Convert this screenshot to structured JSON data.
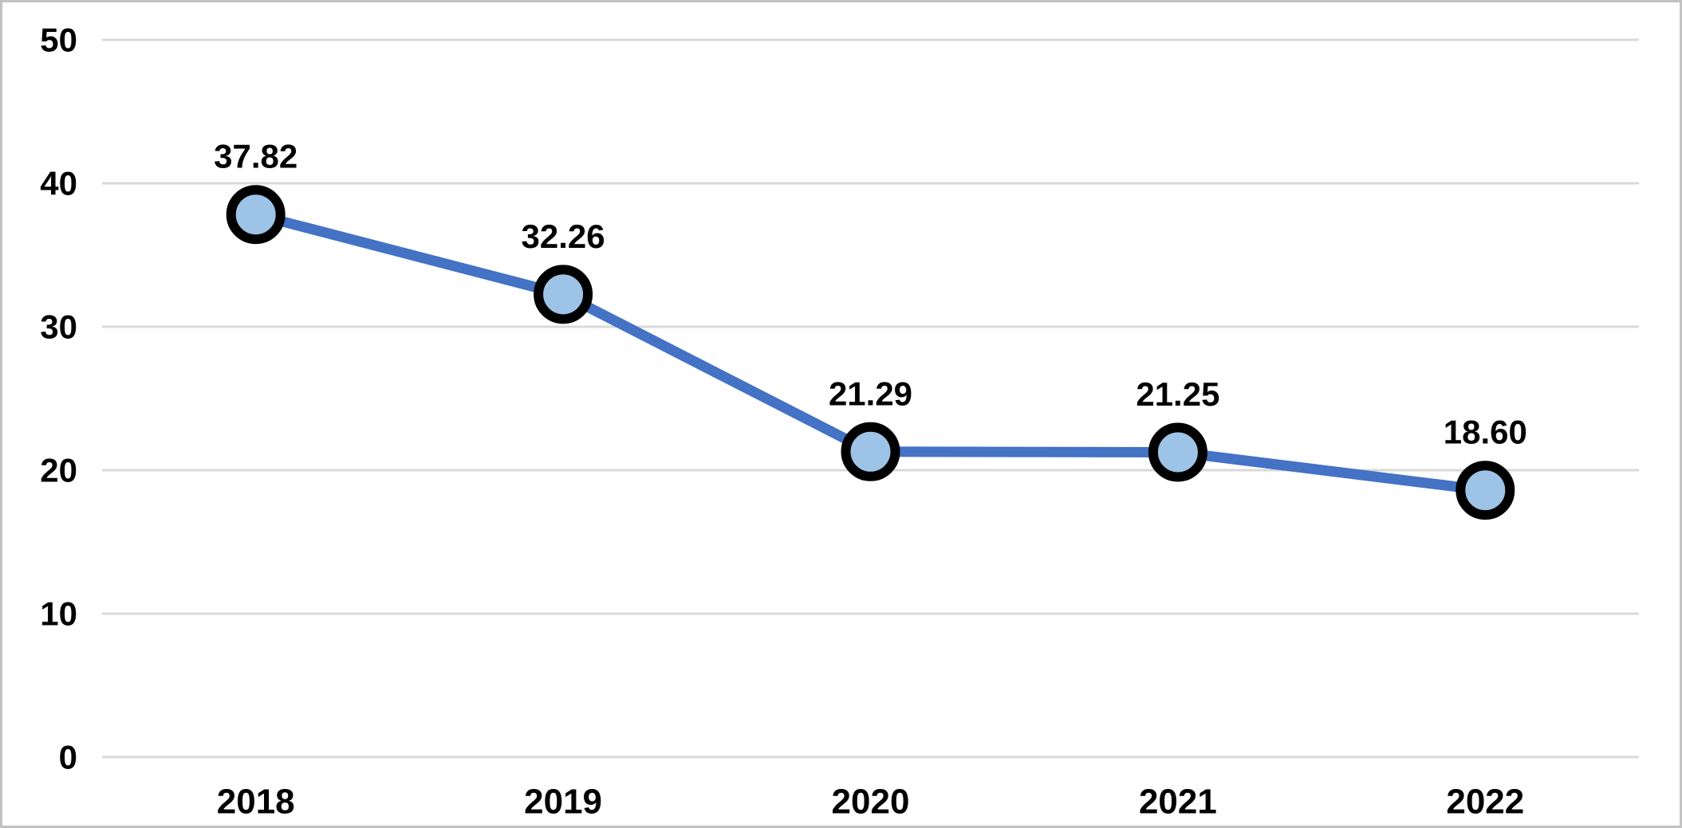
{
  "chart_data": {
    "type": "line",
    "categories": [
      "2018",
      "2019",
      "2020",
      "2021",
      "2022"
    ],
    "series": [
      {
        "name": "series-1",
        "values": [
          37.82,
          32.26,
          21.29,
          21.25,
          18.6
        ]
      }
    ],
    "data_labels": [
      "37.82",
      "32.26",
      "21.29",
      "21.25",
      "18.60"
    ],
    "title": "",
    "xlabel": "",
    "ylabel": "",
    "ylim": [
      0,
      50
    ],
    "yticks": [
      0,
      10,
      20,
      30,
      40,
      50
    ],
    "ytick_labels": [
      "0",
      "10",
      "20",
      "30",
      "40",
      "50"
    ],
    "grid": true,
    "legend": "none",
    "colors": {
      "line": "#4472C4",
      "marker_fill": "#9DC3E6",
      "marker_stroke": "#000000",
      "gridline": "#D9D9D9",
      "text": "#000000",
      "background": "#FFFFFF",
      "frame_border": "#C2C2C2"
    },
    "marker": {
      "shape": "circle"
    }
  }
}
